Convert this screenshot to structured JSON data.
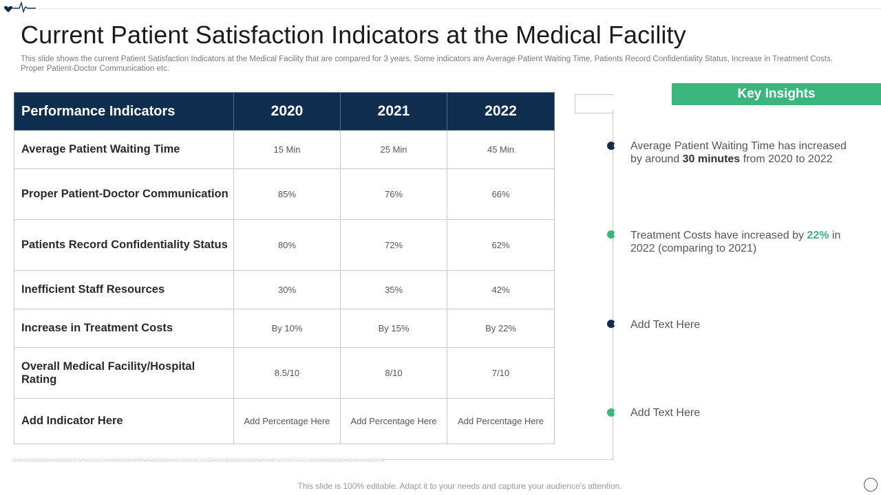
{
  "title": "Current Patient Satisfaction Indicators at the Medical Facility",
  "subtitle": "This slide shows the current Patient Satisfaction Indicators at the Medical Facility that are compared for 3 years. Some indicators are Average Patient Waiting Time, Patients Record Confidentiality Status, Increase in Treatment Costs, Proper Patient-Doctor Communication etc.",
  "colors": {
    "navy": "#0f2d4f",
    "green": "#3bb77e",
    "border": "#c9c9c9"
  },
  "table": {
    "headers": [
      "Performance Indicators",
      "2020",
      "2021",
      "2022"
    ],
    "rows": [
      {
        "indicator": "Average Patient Waiting Time",
        "values": [
          "15 Min",
          "25 Min",
          "45 Min"
        ]
      },
      {
        "indicator": "Proper Patient-Doctor Communication",
        "values": [
          "85%",
          "76%",
          "66%"
        ]
      },
      {
        "indicator": "Patients Record Confidentiality  Status",
        "values": [
          "80%",
          "72%",
          "62%"
        ]
      },
      {
        "indicator": "Inefficient Staff Resources",
        "values": [
          "30%",
          "35%",
          "42%"
        ]
      },
      {
        "indicator": "Increase in Treatment Costs",
        "values": [
          "By 10%",
          "By 15%",
          "By 22%"
        ]
      },
      {
        "indicator": "Overall Medical Facility/Hospital Rating",
        "values": [
          "8.5/10",
          "8/10",
          "7/10"
        ]
      },
      {
        "indicator": "Add Indicator Here",
        "values": [
          "Add Percentage Here",
          "Add Percentage Here",
          "Add Percentage Here"
        ]
      }
    ]
  },
  "insights": {
    "header": "Key Insights",
    "items": [
      {
        "marker_color": "#0f2d4f",
        "pre": "Average Patient Waiting Time has increased by around ",
        "bold": "30 minutes",
        "post": " from 2020 to 2022"
      },
      {
        "marker_color": "#3bb77e",
        "pre": "Treatment  Costs have increased by ",
        "accent": "22%",
        "post": " in 2022 (comparing to 2021)"
      },
      {
        "marker_color": "#0f2d4f",
        "text": "Add Text Here"
      },
      {
        "marker_color": "#3bb77e",
        "text": "Add Text Here"
      }
    ]
  },
  "footer": "This slide is 100% editable. Adapt it to your needs and capture your audience's attention."
}
